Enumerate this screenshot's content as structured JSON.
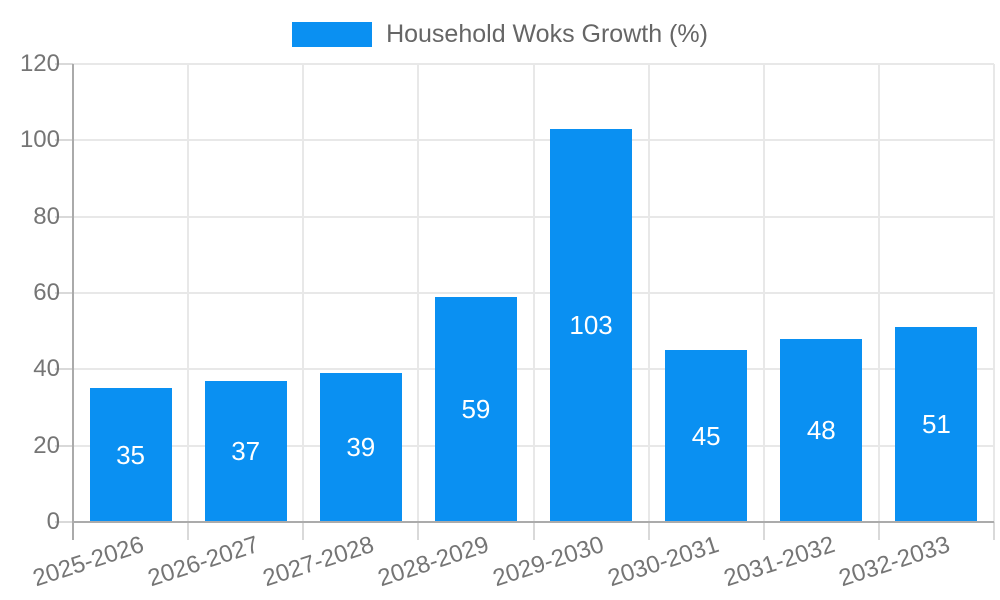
{
  "chart_data": {
    "type": "bar",
    "title": "",
    "legend": {
      "label": "Household Woks Growth (%)",
      "position": "top-center"
    },
    "categories": [
      "2025-2026",
      "2026-2027",
      "2027-2028",
      "2028-2029",
      "2029-2030",
      "2030-2031",
      "2031-2032",
      "2032-2033"
    ],
    "values": [
      35,
      37,
      39,
      59,
      103,
      45,
      48,
      51
    ],
    "xlabel": "",
    "ylabel": "",
    "ylim": [
      0,
      120
    ],
    "yticks": [
      0,
      20,
      40,
      60,
      80,
      100,
      120
    ],
    "grid": "on",
    "value_labels": "inside-center",
    "colors": {
      "bar": "#0a90f2",
      "value_label": "#ffffff",
      "axis_line": "#ababab",
      "grid_line": "#e8e8e8",
      "tick_mark": "#d9d9d9",
      "tick_label": "#757575",
      "legend_text": "#666666",
      "background": "#ffffff"
    }
  }
}
